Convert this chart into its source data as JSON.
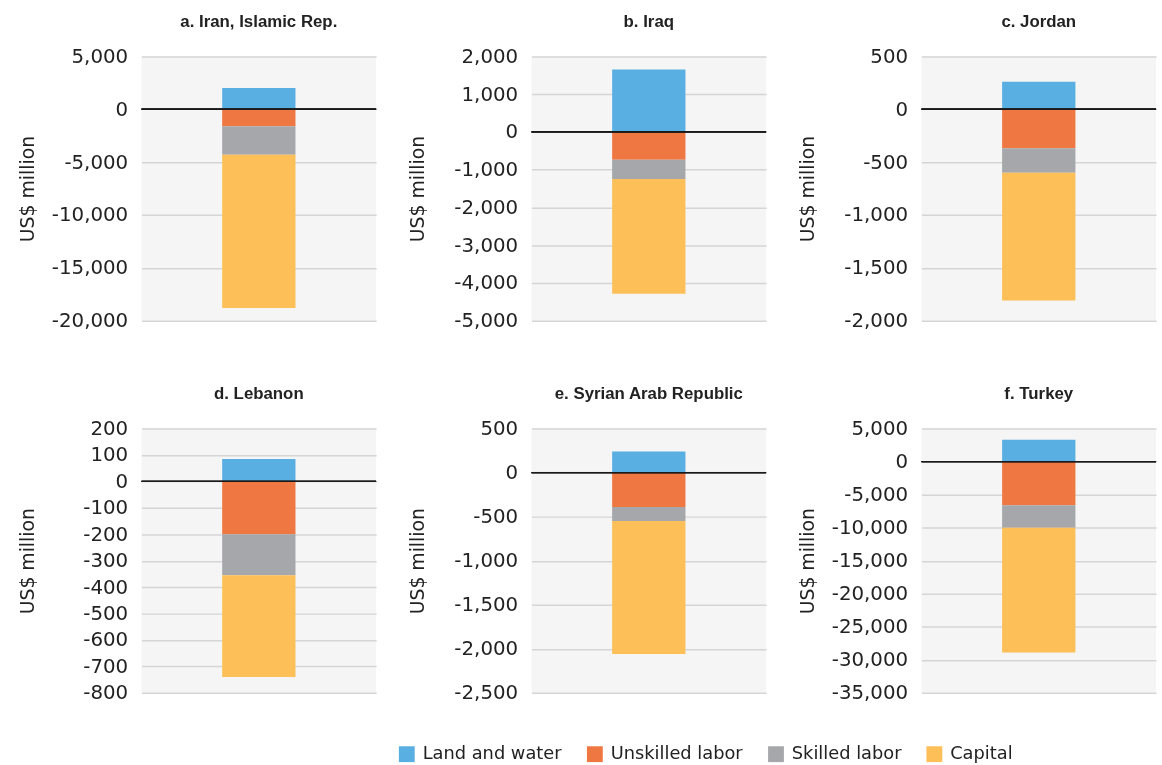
{
  "chart_data": [
    {
      "type": "bar",
      "title": "a. Iran, Islamic Rep.",
      "ylabel": "US$ million",
      "categories": [
        null
      ],
      "stacked": true,
      "grid": "y",
      "tick_labels": "y",
      "legend": "bottom",
      "ylim": [
        -20000,
        5000
      ],
      "yticks": [
        {
          "value": -20000,
          "label": "-20,000"
        },
        {
          "value": -15000,
          "label": "-15,000"
        },
        {
          "value": -10000,
          "label": "-10,000"
        },
        {
          "value": -5000,
          "label": "-5,000"
        },
        0,
        {
          "value": 5000,
          "label": "5,000"
        }
      ],
      "series": [
        {
          "name": "Land and water",
          "color": "#5aafe2",
          "values": [
            2000
          ]
        },
        {
          "name": "Unskilled labor",
          "color": "#ef7742",
          "values": [
            -1600
          ]
        },
        {
          "name": "Skilled labor",
          "color": "#a6a7aa",
          "values": [
            -2700
          ]
        },
        {
          "name": "Capital",
          "color": "#fdbf58",
          "values": [
            -14500
          ]
        }
      ]
    },
    {
      "type": "bar",
      "title": "b. Iraq",
      "ylabel": "US$ million",
      "categories": [
        null
      ],
      "stacked": true,
      "grid": "y",
      "tick_labels": "y",
      "ylim": [
        -5000,
        2000
      ],
      "yticks": [
        {
          "value": -5000,
          "label": "-5,000"
        },
        {
          "value": -4000,
          "label": "-4,000"
        },
        {
          "value": -3000,
          "label": "-3,000"
        },
        {
          "value": -2000,
          "label": "-2,000"
        },
        {
          "value": -1000,
          "label": "-1,000"
        },
        0,
        {
          "value": 1000,
          "label": "1,000"
        },
        {
          "value": 2000,
          "label": "2,000"
        }
      ],
      "series": [
        {
          "color": "#5aafe2",
          "values": [
            1650
          ]
        },
        {
          "color": "#ef7742",
          "values": [
            -740
          ]
        },
        {
          "color": "#a6a7aa",
          "values": [
            -510
          ]
        },
        {
          "color": "#fdbf58",
          "values": [
            -3040
          ]
        }
      ]
    },
    {
      "type": "bar",
      "title": "c. Jordan",
      "ylabel": "US$ million",
      "categories": [
        null
      ],
      "stacked": true,
      "grid": "y",
      "tick_labels": "y",
      "ylim": [
        -2000,
        500
      ],
      "yticks": [
        {
          "value": -2000,
          "label": "-2,000"
        },
        {
          "value": -1500,
          "label": "-1,500"
        },
        {
          "value": -1000,
          "label": "-1,000"
        },
        -500,
        0,
        500
      ],
      "series": [
        {
          "color": "#5aafe2",
          "values": [
            260
          ]
        },
        {
          "color": "#ef7742",
          "values": [
            -370
          ]
        },
        {
          "color": "#a6a7aa",
          "values": [
            -230
          ]
        },
        {
          "color": "#fdbf58",
          "values": [
            -1210
          ]
        }
      ]
    },
    {
      "type": "bar",
      "title": "d. Lebanon",
      "ylabel": "US$ million",
      "categories": [
        null
      ],
      "stacked": true,
      "grid": "y",
      "tick_labels": "y",
      "ylim": [
        -800,
        200
      ],
      "yticks": [
        -800,
        -700,
        -600,
        -500,
        -400,
        -300,
        -200,
        -100,
        0,
        100,
        200
      ],
      "series": [
        {
          "color": "#5aafe2",
          "values": [
            85
          ]
        },
        {
          "color": "#ef7742",
          "values": [
            -200
          ]
        },
        {
          "color": "#a6a7aa",
          "values": [
            -155
          ]
        },
        {
          "color": "#fdbf58",
          "values": [
            -385
          ]
        }
      ]
    },
    {
      "type": "bar",
      "title": "e. Syrian Arab Republic",
      "ylabel": "US$ million",
      "categories": [
        null
      ],
      "stacked": true,
      "grid": "y",
      "tick_labels": "y",
      "ylim": [
        -2500,
        500
      ],
      "yticks": [
        {
          "value": -2500,
          "label": "-2,500"
        },
        {
          "value": -2000,
          "label": "-2,000"
        },
        {
          "value": -1500,
          "label": "-1,500"
        },
        {
          "value": -1000,
          "label": "-1,000"
        },
        -500,
        0,
        500
      ],
      "series": [
        {
          "color": "#5aafe2",
          "values": [
            240
          ]
        },
        {
          "color": "#ef7742",
          "values": [
            -390
          ]
        },
        {
          "color": "#a6a7aa",
          "values": [
            -160
          ]
        },
        {
          "color": "#fdbf58",
          "values": [
            -1510
          ]
        }
      ]
    },
    {
      "type": "bar",
      "title": "f. Turkey",
      "ylabel": "US$ million",
      "categories": [
        null
      ],
      "stacked": true,
      "grid": "y",
      "tick_labels": "y",
      "ylim": [
        -35000,
        5000
      ],
      "yticks": [
        {
          "value": -35000,
          "label": "-35,000"
        },
        {
          "value": -30000,
          "label": "-30,000"
        },
        {
          "value": -25000,
          "label": "-25,000"
        },
        {
          "value": -20000,
          "label": "-20,000"
        },
        {
          "value": -15000,
          "label": "-15,000"
        },
        {
          "value": -10000,
          "label": "-10,000"
        },
        {
          "value": -5000,
          "label": "-5,000"
        },
        0,
        {
          "value": 5000,
          "label": "5,000"
        }
      ],
      "series": [
        {
          "color": "#5aafe2",
          "values": [
            3300
          ]
        },
        {
          "color": "#ef7742",
          "values": [
            -6600
          ]
        },
        {
          "color": "#a6a7aa",
          "values": [
            -3400
          ]
        },
        {
          "color": "#fdbf58",
          "values": [
            -18900
          ]
        }
      ]
    }
  ]
}
